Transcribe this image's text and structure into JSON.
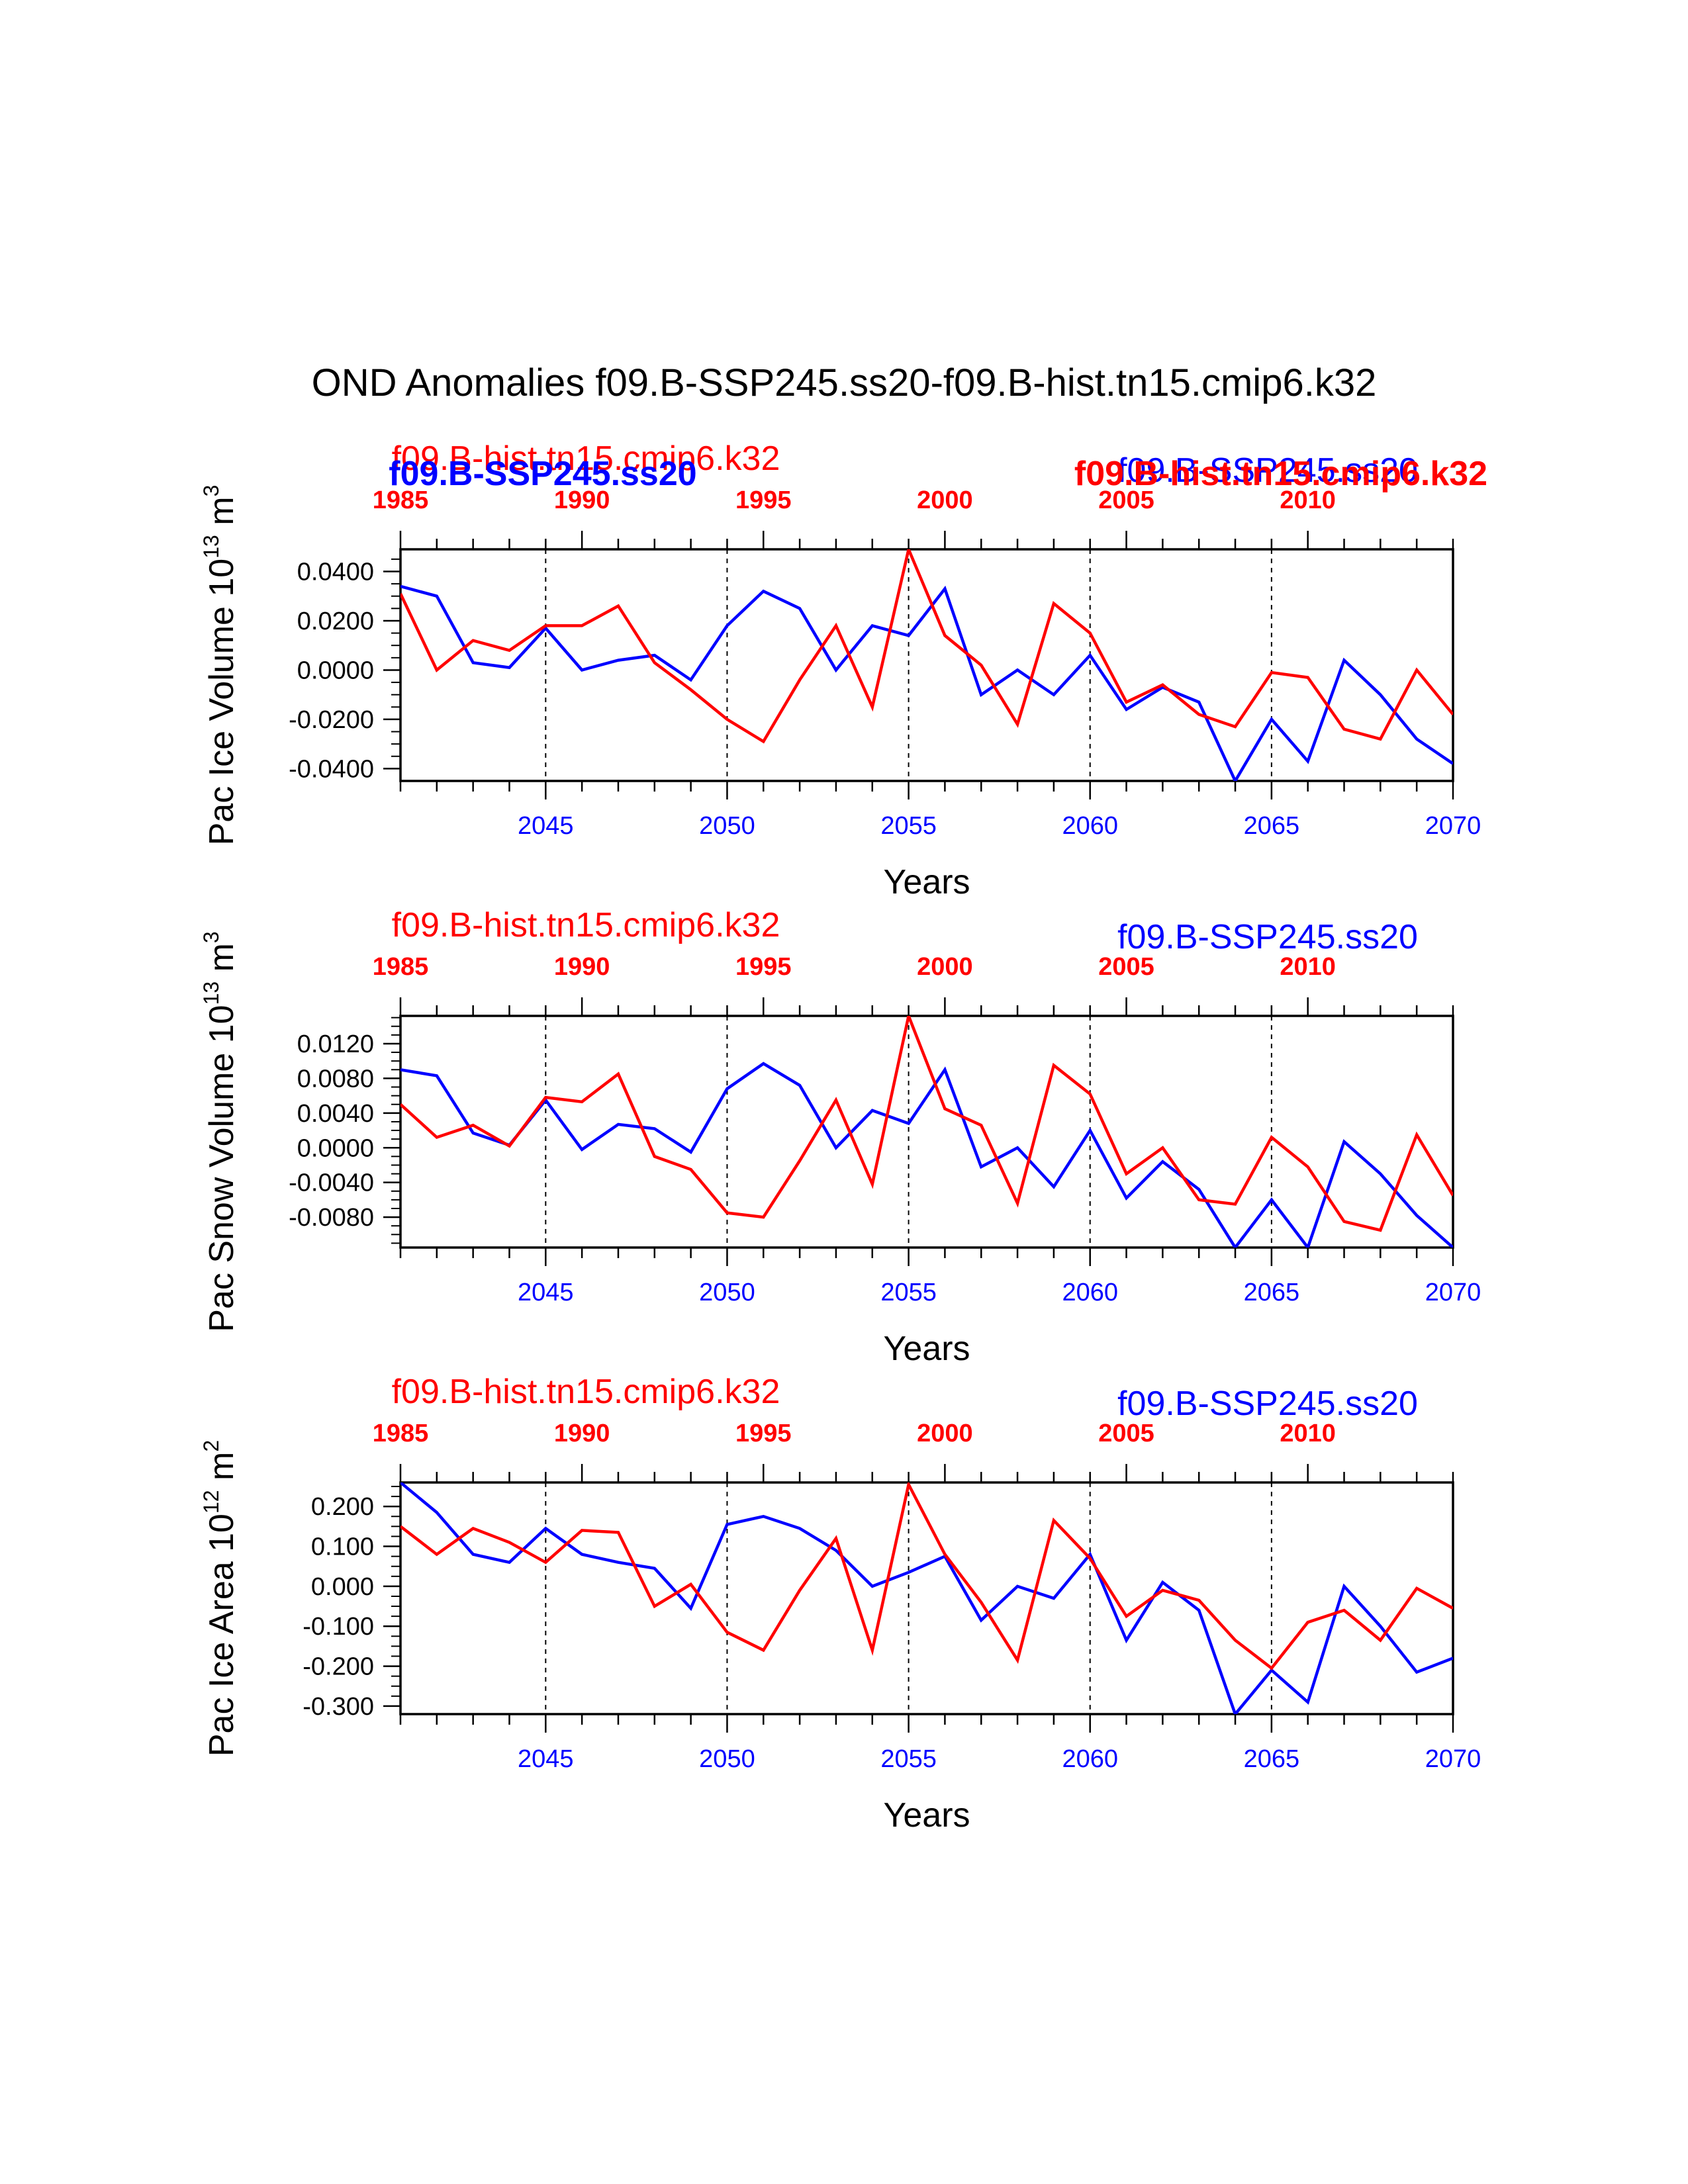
{
  "figure": {
    "title": "OND Anomalies f09.B-SSP245.ss20-f09.B-hist.tn15.cmip6.k32",
    "colors": {
      "ssp": "#0000ff",
      "hist": "#ff0000",
      "axis": "#000000"
    }
  },
  "chart_data": [
    {
      "type": "line",
      "ylabel_main": "Pac Ice Volume 10",
      "ylabel_exp": "13",
      "ylabel_unit": "m",
      "ylabel_unit_exp": "3",
      "xlabel": "Years",
      "ylim": [
        -0.045,
        0.049
      ],
      "yticks": [
        -0.04,
        -0.02,
        0.0,
        0.02,
        0.04
      ],
      "ytick_labels": [
        "-0.0400",
        "-0.0200",
        "0.0000",
        "0.0200",
        "0.0400"
      ],
      "xlim": [
        2041,
        2070
      ],
      "bottom_ticks": [
        2045,
        2050,
        2055,
        2060,
        2065,
        2070
      ],
      "bottom_tick_labels": [
        "2045",
        "2050",
        "2055",
        "2060",
        "2065",
        "2070"
      ],
      "top_ticks": [
        1985,
        1990,
        1995,
        2000,
        2005,
        2010
      ],
      "top_tick_labels": [
        "1985",
        "1990",
        "1995",
        "2000",
        "2005",
        "2010"
      ],
      "dashed_x": [
        2045,
        2050,
        2055,
        2060,
        2065
      ],
      "legend_hist": "f09.B-hist.tn15.cmip6.k32",
      "legend_ssp": "f09.B-SSP245.ss20",
      "legend_ssp_bold": "f09.B-SSP245.ss20",
      "legend_hist_bold": "f09.B-hist.tn15.cmip6.k32",
      "x": [
        2041,
        2042,
        2043,
        2044,
        2045,
        2046,
        2047,
        2048,
        2049,
        2050,
        2051,
        2052,
        2053,
        2054,
        2055,
        2056,
        2057,
        2058,
        2059,
        2060,
        2061,
        2062,
        2063,
        2064,
        2065,
        2066,
        2067,
        2068,
        2069,
        2070
      ],
      "series": [
        {
          "name": "f09.B-SSP245.ss20",
          "color": "#0000ff",
          "values": [
            0.034,
            0.03,
            0.003,
            0.001,
            0.017,
            0.0,
            0.004,
            0.006,
            -0.004,
            0.018,
            0.032,
            0.025,
            0.0,
            0.018,
            0.014,
            0.033,
            -0.01,
            0.0,
            -0.01,
            0.006,
            -0.016,
            -0.007,
            -0.013,
            -0.045,
            -0.02,
            -0.037,
            0.004,
            -0.01,
            -0.028,
            -0.038
          ]
        },
        {
          "name": "f09.B-hist.tn15.cmip6.k32",
          "color": "#ff0000",
          "values": [
            0.031,
            0.0,
            0.012,
            0.008,
            0.018,
            0.018,
            0.026,
            0.003,
            -0.008,
            -0.02,
            -0.029,
            -0.004,
            0.018,
            -0.015,
            0.049,
            0.014,
            0.002,
            -0.022,
            0.027,
            0.015,
            -0.013,
            -0.006,
            -0.018,
            -0.023,
            -0.001,
            -0.003,
            -0.024,
            -0.028,
            0.0,
            -0.018
          ]
        }
      ]
    },
    {
      "type": "line",
      "ylabel_main": "Pac Snow Volume 10",
      "ylabel_exp": "13",
      "ylabel_unit": "m",
      "ylabel_unit_exp": "3",
      "xlabel": "Years",
      "ylim": [
        -0.0115,
        0.0152
      ],
      "yticks": [
        -0.008,
        -0.004,
        0.0,
        0.004,
        0.008,
        0.012
      ],
      "ytick_labels": [
        "-0.0080",
        "-0.0040",
        "0.0000",
        "0.0040",
        "0.0080",
        "0.0120"
      ],
      "xlim": [
        2041,
        2070
      ],
      "bottom_ticks": [
        2045,
        2050,
        2055,
        2060,
        2065,
        2070
      ],
      "bottom_tick_labels": [
        "2045",
        "2050",
        "2055",
        "2060",
        "2065",
        "2070"
      ],
      "top_ticks": [
        1985,
        1990,
        1995,
        2000,
        2005,
        2010
      ],
      "top_tick_labels": [
        "1985",
        "1990",
        "1995",
        "2000",
        "2005",
        "2010"
      ],
      "dashed_x": [
        2045,
        2050,
        2055,
        2060,
        2065
      ],
      "legend_hist": "f09.B-hist.tn15.cmip6.k32",
      "legend_ssp": "f09.B-SSP245.ss20",
      "x": [
        2041,
        2042,
        2043,
        2044,
        2045,
        2046,
        2047,
        2048,
        2049,
        2050,
        2051,
        2052,
        2053,
        2054,
        2055,
        2056,
        2057,
        2058,
        2059,
        2060,
        2061,
        2062,
        2063,
        2064,
        2065,
        2066,
        2067,
        2068,
        2069,
        2070
      ],
      "series": [
        {
          "name": "f09.B-SSP245.ss20",
          "color": "#0000ff",
          "values": [
            0.009,
            0.0083,
            0.0017,
            0.0003,
            0.0055,
            -0.0002,
            0.0027,
            0.0022,
            -0.0005,
            0.0068,
            0.0097,
            0.0072,
            0.0,
            0.0043,
            0.0028,
            0.009,
            -0.0022,
            0.0,
            -0.0045,
            0.002,
            -0.0058,
            -0.0016,
            -0.0048,
            -0.0115,
            -0.006,
            -0.0115,
            0.0007,
            -0.003,
            -0.0078,
            -0.0115
          ]
        },
        {
          "name": "f09.B-hist.tn15.cmip6.k32",
          "color": "#ff0000",
          "values": [
            0.005,
            0.0012,
            0.0026,
            0.0002,
            0.0058,
            0.0053,
            0.0085,
            -0.001,
            -0.0025,
            -0.0075,
            -0.008,
            -0.0015,
            0.0055,
            -0.0042,
            0.0152,
            0.0045,
            0.0026,
            -0.0064,
            0.0095,
            0.0062,
            -0.003,
            0.0,
            -0.006,
            -0.0065,
            0.0012,
            -0.0022,
            -0.0085,
            -0.0095,
            0.0015,
            -0.0055
          ]
        }
      ]
    },
    {
      "type": "line",
      "ylabel_main": "Pac Ice Area 10",
      "ylabel_exp": "12",
      "ylabel_unit": "m",
      "ylabel_unit_exp": "2",
      "xlabel": "Years",
      "ylim": [
        -0.32,
        0.26
      ],
      "yticks": [
        -0.3,
        -0.2,
        -0.1,
        0.0,
        0.1,
        0.2
      ],
      "ytick_labels": [
        "-0.300",
        "-0.200",
        "-0.100",
        "0.000",
        "0.100",
        "0.200"
      ],
      "xlim": [
        2041,
        2070
      ],
      "bottom_ticks": [
        2045,
        2050,
        2055,
        2060,
        2065,
        2070
      ],
      "bottom_tick_labels": [
        "2045",
        "2050",
        "2055",
        "2060",
        "2065",
        "2070"
      ],
      "top_ticks": [
        1985,
        1990,
        1995,
        2000,
        2005,
        2010
      ],
      "top_tick_labels": [
        "1985",
        "1990",
        "1995",
        "2000",
        "2005",
        "2010"
      ],
      "dashed_x": [
        2045,
        2050,
        2055,
        2060,
        2065
      ],
      "legend_hist": "f09.B-hist.tn15.cmip6.k32",
      "legend_ssp": "f09.B-SSP245.ss20",
      "x": [
        2041,
        2042,
        2043,
        2044,
        2045,
        2046,
        2047,
        2048,
        2049,
        2050,
        2051,
        2052,
        2053,
        2054,
        2055,
        2056,
        2057,
        2058,
        2059,
        2060,
        2061,
        2062,
        2063,
        2064,
        2065,
        2066,
        2067,
        2068,
        2069,
        2070
      ],
      "series": [
        {
          "name": "f09.B-SSP245.ss20",
          "color": "#0000ff",
          "values": [
            0.26,
            0.185,
            0.08,
            0.06,
            0.145,
            0.08,
            0.06,
            0.045,
            -0.055,
            0.155,
            0.175,
            0.145,
            0.09,
            0.0,
            0.035,
            0.075,
            -0.085,
            0.0,
            -0.03,
            0.08,
            -0.135,
            0.01,
            -0.06,
            -0.32,
            -0.21,
            -0.29,
            0.0,
            -0.1,
            -0.215,
            -0.18
          ]
        },
        {
          "name": "f09.B-hist.tn15.cmip6.k32",
          "color": "#ff0000",
          "values": [
            0.15,
            0.08,
            0.145,
            0.11,
            0.06,
            0.14,
            0.135,
            -0.05,
            0.005,
            -0.115,
            -0.16,
            -0.01,
            0.12,
            -0.16,
            0.255,
            0.08,
            -0.04,
            -0.185,
            0.165,
            0.07,
            -0.075,
            -0.01,
            -0.035,
            -0.135,
            -0.205,
            -0.09,
            -0.06,
            -0.135,
            -0.005,
            -0.055
          ]
        }
      ]
    }
  ]
}
